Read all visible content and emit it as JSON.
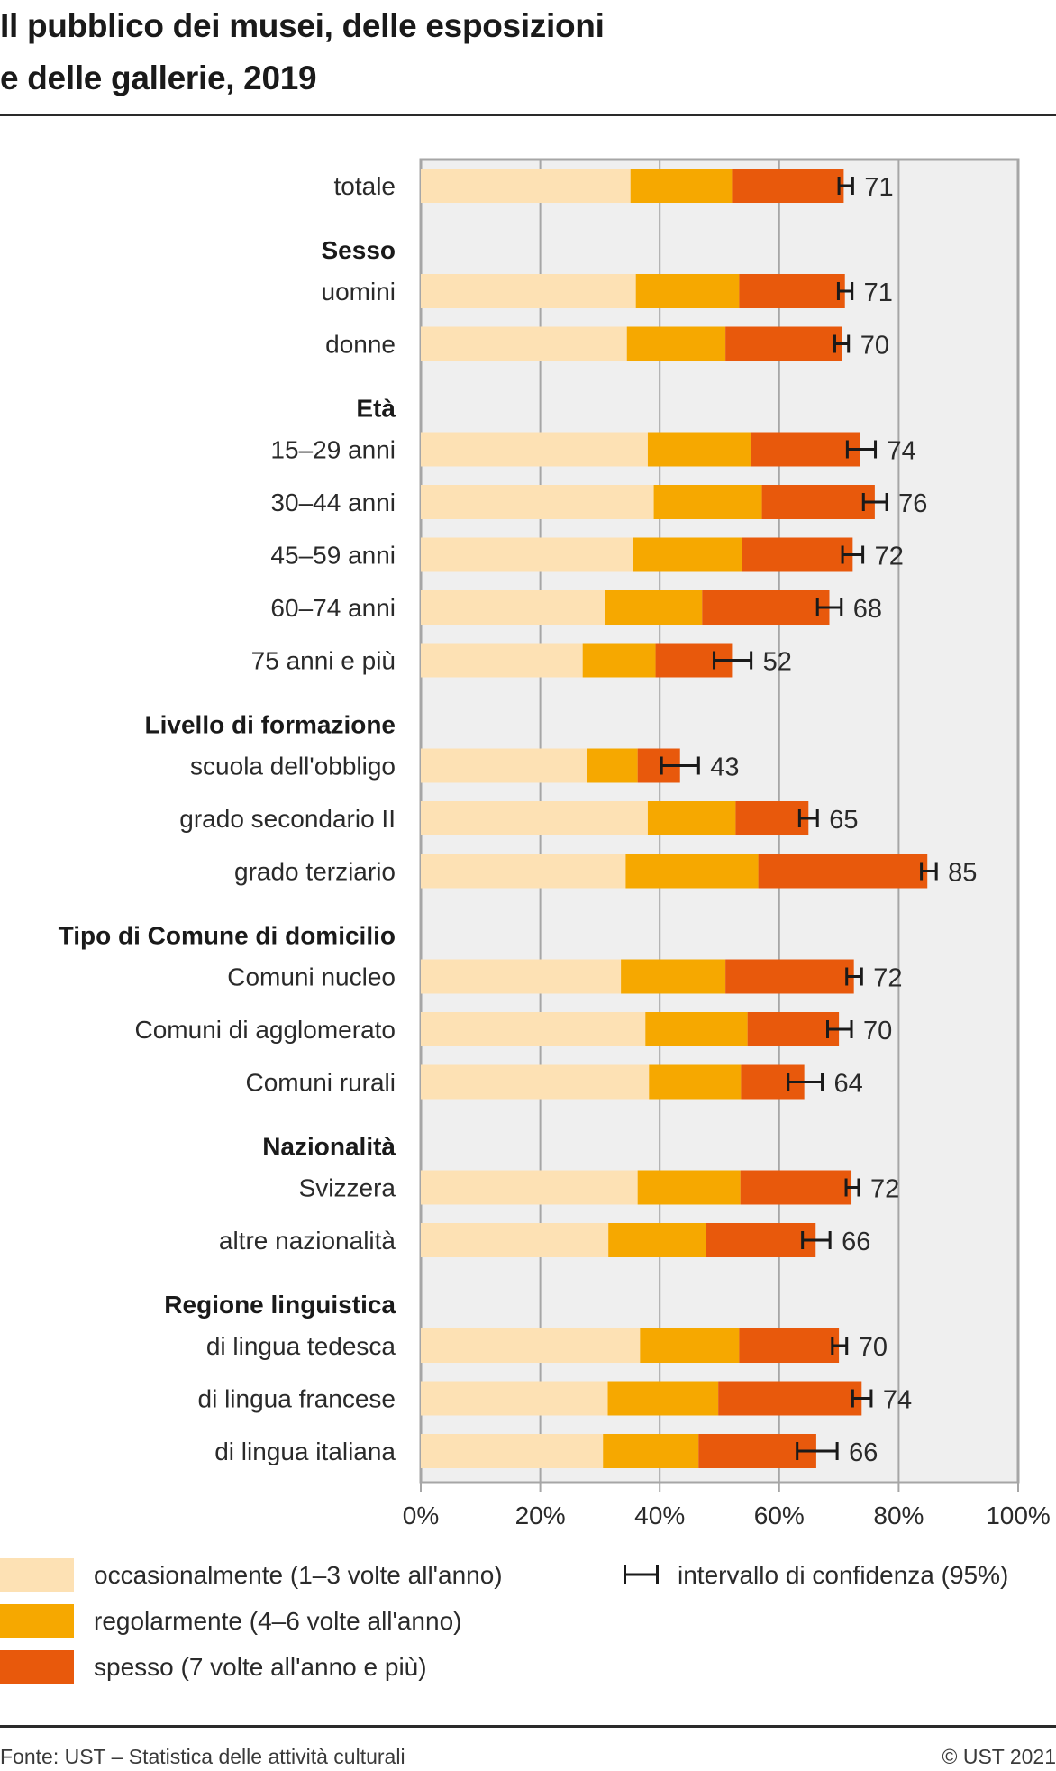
{
  "title_lines": [
    "Il pubblico dei musei, delle esposizioni",
    "e delle gallerie, 2019"
  ],
  "colors": {
    "occasionally": "#fde1b4",
    "regularly": "#f6a800",
    "often": "#e8590c",
    "plot_background": "#efefef",
    "grid": "#a6a6a6",
    "error_bar": "#1a1a1a"
  },
  "legend": {
    "items": [
      {
        "label": "occasionalmente (1–3 volte all'anno)",
        "key": "occasionally"
      },
      {
        "label": "regolarmente (4–6 volte all'anno)",
        "key": "regularly"
      },
      {
        "label": "spesso (7 volte all'anno e più)",
        "key": "often"
      }
    ],
    "ci_label": "intervallo di confidenza (95%)"
  },
  "footer": {
    "source": "Fonte: UST – Statistica delle attività culturali",
    "copyright": "© UST 2021"
  },
  "chart_data": {
    "type": "bar",
    "orientation": "horizontal",
    "stacked": true,
    "title": "Il pubblico dei musei, delle esposizioni e delle gallerie, 2019",
    "xlabel": "",
    "ylabel": "",
    "xlim": [
      0,
      100
    ],
    "x_ticks": [
      "0%",
      "20%",
      "40%",
      "60%",
      "80%",
      "100%"
    ],
    "grid": true,
    "legend_position": "bottom",
    "series_names": [
      "occasionalmente (1–3 volte all'anno)",
      "regolarmente (4–6 volte all'anno)",
      "spesso (7 volte all'anno e più)"
    ],
    "rows": [
      {
        "kind": "bar",
        "label": "totale",
        "values": [
          35.1,
          17.0,
          18.7
        ],
        "total_label": "71",
        "ci": [
          70.0,
          72.3
        ]
      },
      {
        "kind": "header",
        "label": "Sesso"
      },
      {
        "kind": "bar",
        "label": "uomini",
        "values": [
          36.0,
          17.3,
          17.7
        ],
        "total_label": "71",
        "ci": [
          69.9,
          72.2
        ]
      },
      {
        "kind": "bar",
        "label": "donne",
        "values": [
          34.5,
          16.5,
          19.5
        ],
        "total_label": "70",
        "ci": [
          69.3,
          71.6
        ]
      },
      {
        "kind": "header",
        "label": "Età"
      },
      {
        "kind": "bar",
        "label": "15–29 anni",
        "values": [
          38.0,
          17.2,
          18.4
        ],
        "total_label": "74",
        "ci": [
          71.4,
          76.1
        ]
      },
      {
        "kind": "bar",
        "label": "30–44 anni",
        "values": [
          39.0,
          18.1,
          18.9
        ],
        "total_label": "76",
        "ci": [
          74.1,
          78.0
        ]
      },
      {
        "kind": "bar",
        "label": "45–59 anni",
        "values": [
          35.5,
          18.2,
          18.6
        ],
        "total_label": "72",
        "ci": [
          70.6,
          74.0
        ]
      },
      {
        "kind": "bar",
        "label": "60–74 anni",
        "values": [
          30.8,
          16.3,
          21.3
        ],
        "total_label": "68",
        "ci": [
          66.4,
          70.4
        ]
      },
      {
        "kind": "bar",
        "label": "75 anni e più",
        "values": [
          27.1,
          12.2,
          12.8
        ],
        "total_label": "52",
        "ci": [
          49.1,
          55.3
        ]
      },
      {
        "kind": "header",
        "label": "Livello di formazione"
      },
      {
        "kind": "bar",
        "label": "scuola dell'obbligo",
        "values": [
          27.9,
          8.4,
          7.1
        ],
        "total_label": "43",
        "ci": [
          40.3,
          46.5
        ]
      },
      {
        "kind": "bar",
        "label": "grado secondario II",
        "values": [
          38.0,
          14.7,
          12.2
        ],
        "total_label": "65",
        "ci": [
          63.4,
          66.4
        ]
      },
      {
        "kind": "bar",
        "label": "grado terziario",
        "values": [
          34.3,
          22.2,
          28.3
        ],
        "total_label": "85",
        "ci": [
          83.8,
          86.3
        ]
      },
      {
        "kind": "header",
        "label": "Tipo di Comune di domicilio"
      },
      {
        "kind": "bar",
        "label": "Comuni nucleo",
        "values": [
          33.5,
          17.5,
          21.5
        ],
        "total_label": "72",
        "ci": [
          71.3,
          73.8
        ]
      },
      {
        "kind": "bar",
        "label": "Comuni di agglomerato",
        "values": [
          37.6,
          17.1,
          15.3
        ],
        "total_label": "70",
        "ci": [
          68.1,
          72.1
        ]
      },
      {
        "kind": "bar",
        "label": "Comuni rurali",
        "values": [
          38.2,
          15.4,
          10.6
        ],
        "total_label": "64",
        "ci": [
          61.5,
          67.2
        ]
      },
      {
        "kind": "header",
        "label": "Nazionalità"
      },
      {
        "kind": "bar",
        "label": "Svizzera",
        "values": [
          36.3,
          17.2,
          18.6
        ],
        "total_label": "72",
        "ci": [
          71.2,
          73.3
        ]
      },
      {
        "kind": "bar",
        "label": "altre nazionalità",
        "values": [
          31.4,
          16.3,
          18.4
        ],
        "total_label": "66",
        "ci": [
          63.9,
          68.5
        ]
      },
      {
        "kind": "header",
        "label": "Regione linguistica"
      },
      {
        "kind": "bar",
        "label": "di lingua tedesca",
        "values": [
          36.7,
          16.6,
          16.7
        ],
        "total_label": "70",
        "ci": [
          68.9,
          71.3
        ]
      },
      {
        "kind": "bar",
        "label": "di lingua francese",
        "values": [
          31.3,
          18.5,
          24.0
        ],
        "total_label": "74",
        "ci": [
          72.3,
          75.4
        ]
      },
      {
        "kind": "bar",
        "label": "di lingua italiana",
        "values": [
          30.5,
          16.0,
          19.7
        ],
        "total_label": "66",
        "ci": [
          63.0,
          69.7
        ]
      }
    ]
  }
}
